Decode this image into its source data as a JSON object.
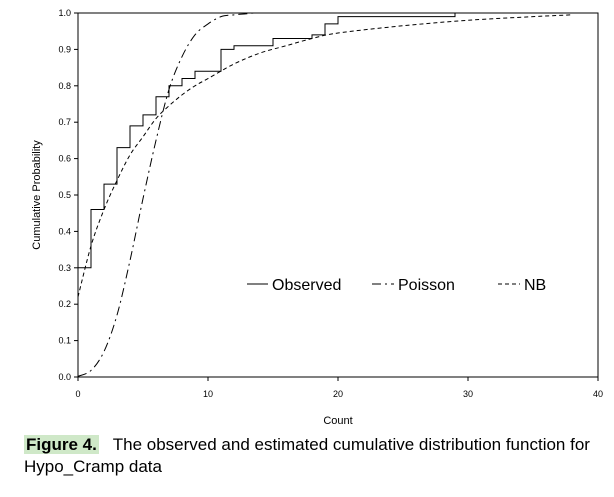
{
  "chart_data": {
    "type": "line",
    "xlabel": "Count",
    "ylabel": "Cumulative Probability",
    "xlim": [
      0,
      40
    ],
    "ylim": [
      0.0,
      1.0
    ],
    "x_ticks": [
      "0",
      "10",
      "20",
      "30",
      "40"
    ],
    "y_ticks": [
      "0.0",
      "0.1",
      "0.2",
      "0.3",
      "0.4",
      "0.5",
      "0.6",
      "0.7",
      "0.8",
      "0.9",
      "1.0"
    ],
    "grid": false,
    "legend_position": "center-right",
    "series": [
      {
        "name": "Observed",
        "style": "step",
        "dash": "solid",
        "x": [
          0,
          1,
          2,
          3,
          4,
          5,
          6,
          7,
          8,
          9,
          11,
          12,
          15,
          18,
          19,
          20,
          29
        ],
        "y": [
          0.3,
          0.46,
          0.53,
          0.63,
          0.69,
          0.72,
          0.77,
          0.8,
          0.82,
          0.84,
          0.9,
          0.91,
          0.93,
          0.94,
          0.97,
          0.99,
          1.0
        ]
      },
      {
        "name": "Poisson",
        "style": "line",
        "dash": "dash-dot",
        "x": [
          0,
          1,
          2,
          3,
          4,
          5,
          6,
          7,
          8,
          9,
          10,
          11,
          12,
          13,
          14,
          20,
          30
        ],
        "y": [
          0.002,
          0.018,
          0.07,
          0.17,
          0.32,
          0.49,
          0.65,
          0.79,
          0.88,
          0.94,
          0.97,
          0.99,
          0.995,
          0.998,
          1.0,
          1.0,
          1.0
        ]
      },
      {
        "name": "NB",
        "style": "line",
        "dash": "dashed",
        "x": [
          0,
          1,
          2,
          3,
          4,
          5,
          6,
          7,
          8,
          9,
          10,
          12,
          14,
          16,
          18,
          20,
          25,
          30,
          35,
          38
        ],
        "y": [
          0.22,
          0.36,
          0.46,
          0.54,
          0.61,
          0.66,
          0.71,
          0.745,
          0.775,
          0.8,
          0.82,
          0.86,
          0.89,
          0.91,
          0.93,
          0.945,
          0.965,
          0.98,
          0.99,
          0.995
        ]
      }
    ]
  },
  "caption": {
    "label": "Figure 4.",
    "text": "The observed and estimated cumulative distribution function for Hypo_Cramp data"
  }
}
